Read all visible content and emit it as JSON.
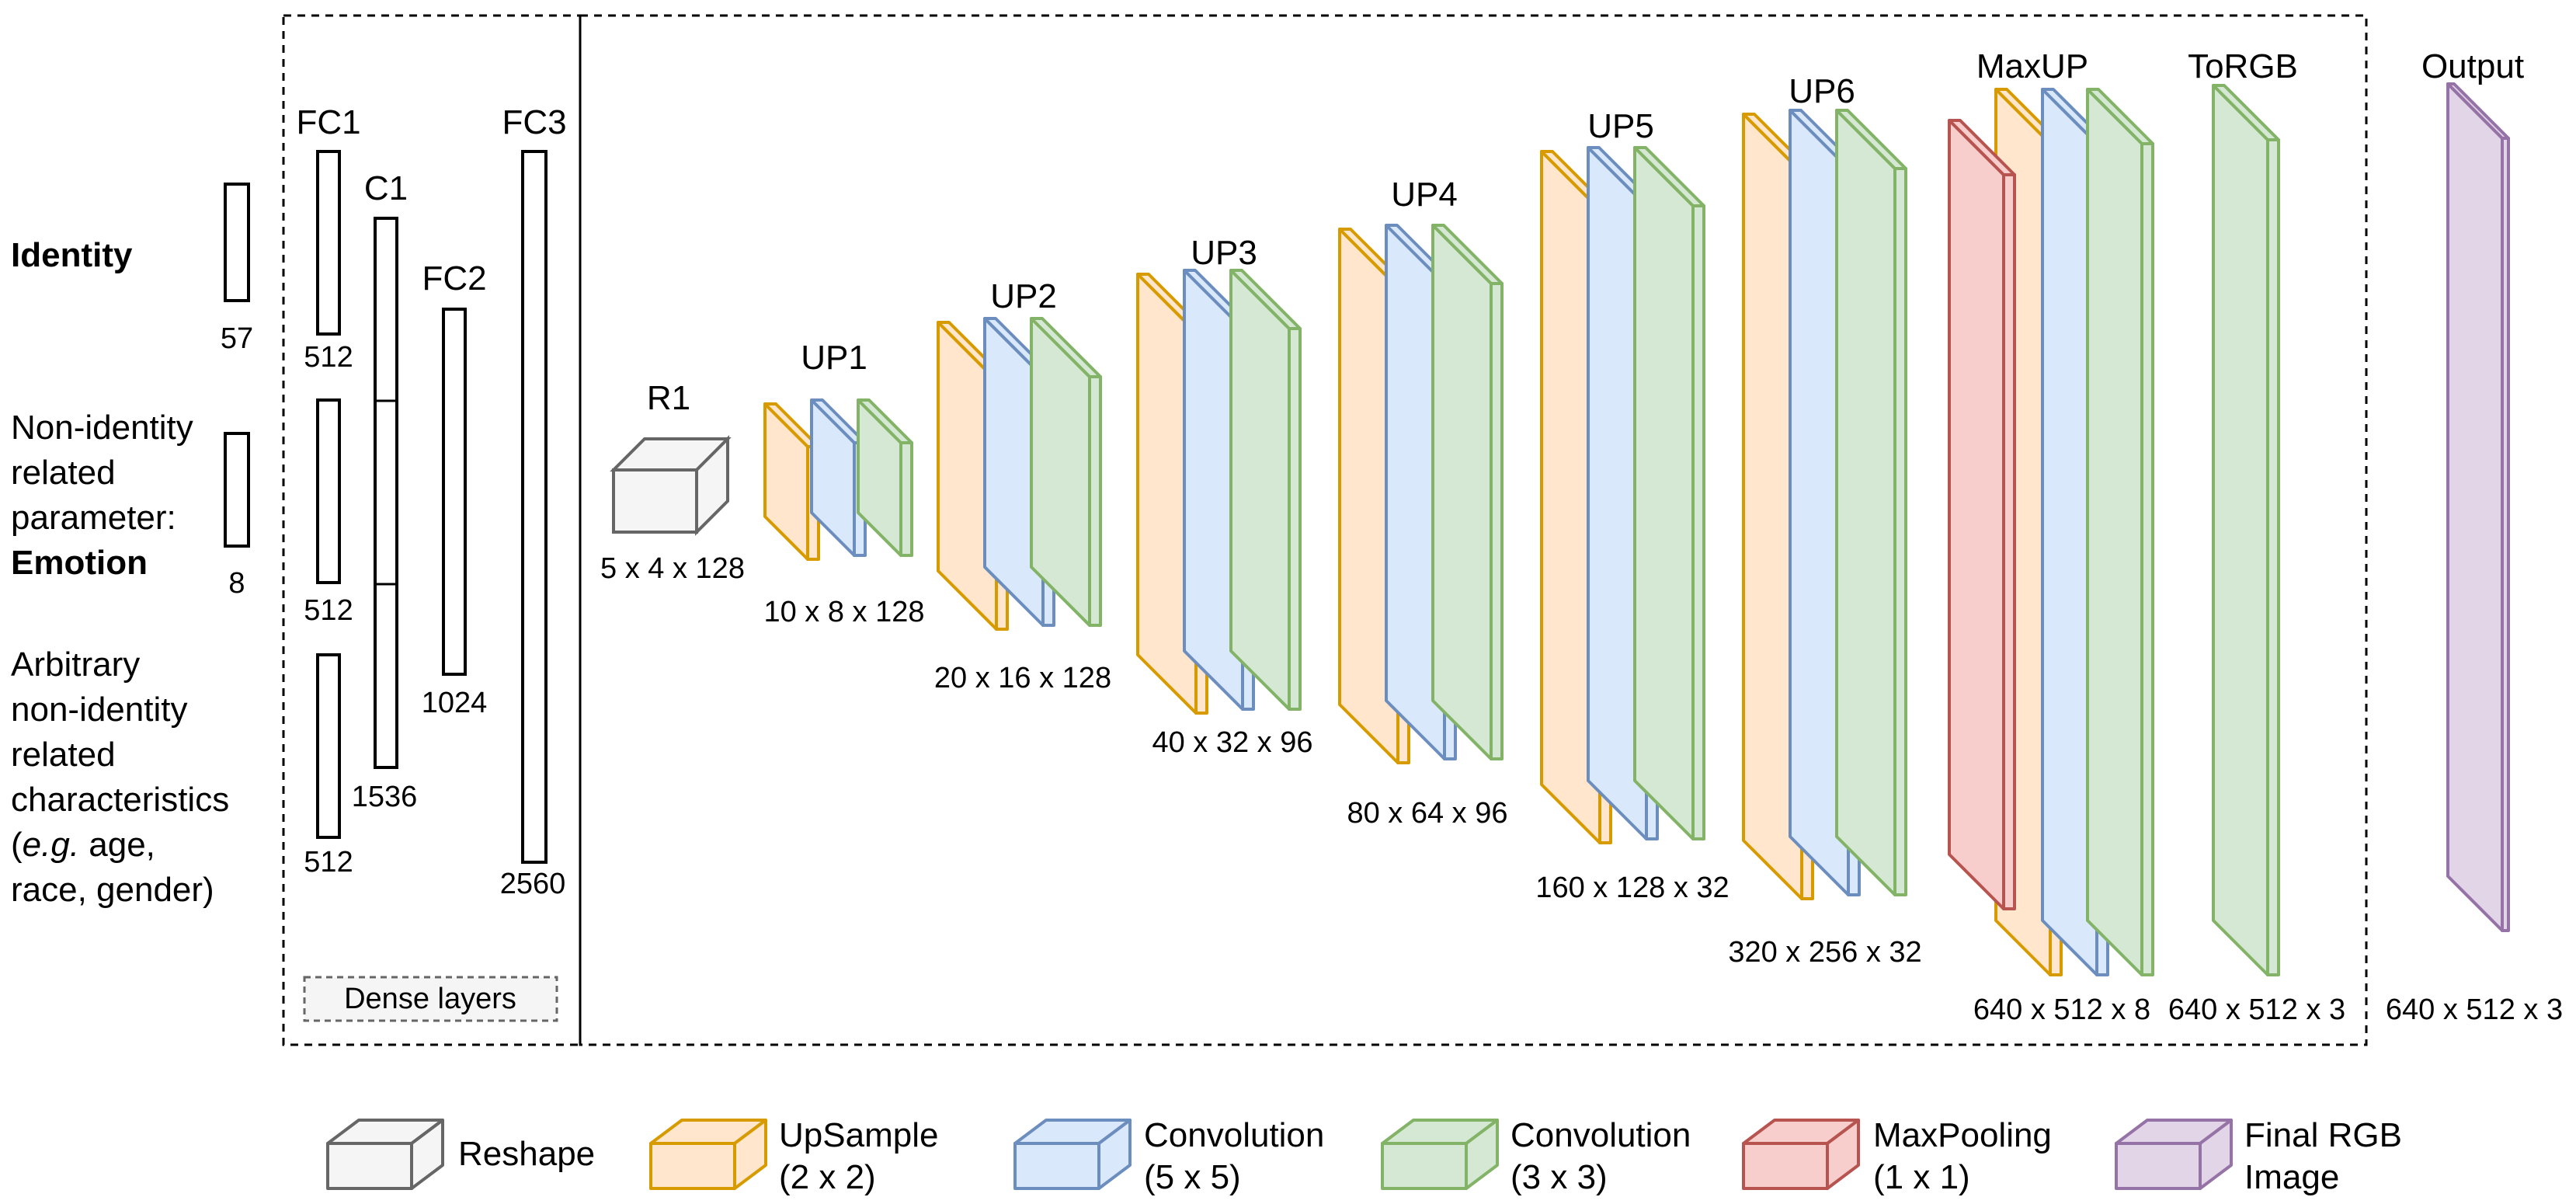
{
  "inputs": {
    "identity": {
      "title": "Identity",
      "size": "57"
    },
    "emotion": {
      "lines": [
        "Non-identity",
        "related",
        "parameter:"
      ],
      "bold": "Emotion",
      "size": "8"
    },
    "arbitrary": {
      "lines": [
        "Arbitrary",
        "non-identity",
        "related",
        "characteristics"
      ],
      "eg_italic": "e.g.",
      "eg_open": "(",
      "eg_rest": " age,",
      "last": "race, gender)"
    }
  },
  "dense": {
    "box_label": "Dense layers",
    "fc1": {
      "title": "FC1",
      "sizes": [
        "512",
        "512",
        "512"
      ]
    },
    "c1": {
      "title": "C1",
      "size": "1536"
    },
    "fc2": {
      "title": "FC2",
      "size": "1024"
    },
    "fc3": {
      "title": "FC3",
      "size": "2560"
    }
  },
  "blocks": [
    {
      "id": "r1",
      "title": "R1",
      "dims": "5 x 4 x 128"
    },
    {
      "id": "up1",
      "title": "UP1",
      "dims": "10 x 8 x 128"
    },
    {
      "id": "up2",
      "title": "UP2",
      "dims": "20 x 16 x 128"
    },
    {
      "id": "up3",
      "title": "UP3",
      "dims": "40 x 32 x 96"
    },
    {
      "id": "up4",
      "title": "UP4",
      "dims": "80 x 64 x 96"
    },
    {
      "id": "up5",
      "title": "UP5",
      "dims": "160 x 128 x 32"
    },
    {
      "id": "up6",
      "title": "UP6",
      "dims": "320 x 256 x 32"
    },
    {
      "id": "maxup",
      "title": "MaxUP",
      "dims": "640 x 512 x 8"
    },
    {
      "id": "torgb",
      "title": "ToRGB",
      "dims": "640 x 512 x 3"
    },
    {
      "id": "output",
      "title": "Output",
      "dims": "640 x 512 x 3"
    }
  ],
  "legend": [
    {
      "id": "reshape",
      "lines": [
        "Reshape"
      ]
    },
    {
      "id": "upsample",
      "lines": [
        "UpSample",
        "(2 x 2)"
      ]
    },
    {
      "id": "conv5",
      "lines": [
        "Convolution",
        "(5 x 5)"
      ]
    },
    {
      "id": "conv3",
      "lines": [
        "Convolution",
        "(3 x 3)"
      ]
    },
    {
      "id": "maxpool",
      "lines": [
        "MaxPooling",
        "(1 x 1)"
      ]
    },
    {
      "id": "finalrgb",
      "lines": [
        "Final RGB",
        "Image"
      ]
    }
  ],
  "colors": {
    "reshape": {
      "fill": "#f5f5f5",
      "stroke": "#666666"
    },
    "upsample": {
      "fill": "#ffe6cc",
      "stroke": "#d79b00"
    },
    "conv5": {
      "fill": "#dae8fc",
      "stroke": "#6c8ebf"
    },
    "conv3": {
      "fill": "#d5e8d4",
      "stroke": "#82b366"
    },
    "maxpool": {
      "fill": "#f8cecc",
      "stroke": "#b85450"
    },
    "finalrgb": {
      "fill": "#e1d5e7",
      "stroke": "#9673a6"
    }
  }
}
